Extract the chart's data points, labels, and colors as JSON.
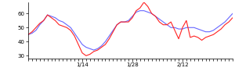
{
  "blue_y": [
    45,
    46,
    48,
    52,
    55,
    59,
    58,
    57,
    55,
    54,
    52,
    50,
    46,
    42,
    38,
    36,
    35,
    34,
    35,
    37,
    40,
    44,
    48,
    52,
    54,
    54,
    55,
    58,
    61,
    62,
    62,
    61,
    60,
    58,
    56,
    54,
    52,
    50,
    50,
    49,
    49,
    50,
    50,
    50,
    49,
    48,
    47,
    47,
    48,
    50,
    52,
    54,
    57,
    60
  ],
  "red_y": [
    45,
    47,
    50,
    53,
    55,
    59,
    57,
    55,
    52,
    51,
    50,
    48,
    44,
    38,
    32,
    30,
    31,
    33,
    34,
    36,
    38,
    42,
    47,
    52,
    54,
    54,
    54,
    57,
    62,
    64,
    68,
    65,
    60,
    58,
    54,
    52,
    52,
    54,
    48,
    42,
    50,
    55,
    43,
    44,
    43,
    41,
    43,
    44,
    45,
    47,
    49,
    52,
    54,
    57
  ],
  "n_points": 54,
  "xlim": [
    0,
    53
  ],
  "ylim": [
    28,
    68
  ],
  "yticks": [
    30,
    40,
    50,
    60
  ],
  "xtick_positions": [
    14,
    27,
    40
  ],
  "xtick_labels": [
    "1/14",
    "1/28",
    "2/12"
  ],
  "blue_color": "#6666ff",
  "red_color": "#ff2222",
  "bg_color": "#ffffff",
  "linewidth": 0.8
}
